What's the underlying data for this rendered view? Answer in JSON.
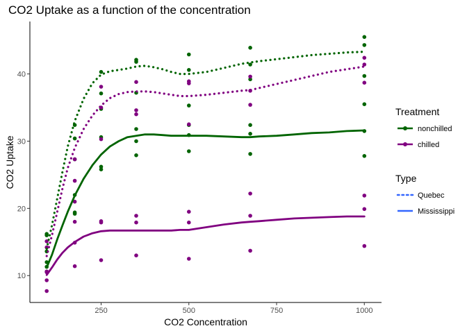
{
  "chart_data": {
    "type": "scatter",
    "title": "CO2 Uptake as a function of the concentration",
    "xlabel": "CO2 Concentration",
    "ylabel": "CO2 Uptake",
    "xlim": [
      47,
      1049
    ],
    "ylim": [
      6,
      47.8
    ],
    "x_ticks": [
      250,
      500,
      750,
      1000
    ],
    "x_tick_labels": [
      "250",
      "500",
      "750",
      "1000"
    ],
    "y_ticks": [
      10,
      20,
      30,
      40
    ],
    "y_tick_labels": [
      "10",
      "20",
      "30",
      "40"
    ],
    "grid": false,
    "legend_position": "right",
    "legends": [
      {
        "title": "Treatment",
        "entries": [
          {
            "label": "nonchilled",
            "color": "#006400"
          },
          {
            "label": "chilled",
            "color": "#800080"
          }
        ]
      },
      {
        "title": "Type",
        "entries": [
          {
            "label": "Quebec",
            "linetype": "dotted",
            "color": "#3366ff"
          },
          {
            "label": "Mississippi",
            "linetype": "solid",
            "color": "#3366ff"
          }
        ]
      }
    ],
    "points": [
      {
        "treatment": "nonchilled",
        "x": [
          95,
          95,
          95,
          95,
          95,
          95,
          175,
          175,
          175,
          175,
          175,
          175,
          250,
          250,
          250,
          250,
          250,
          250,
          350,
          350,
          350,
          350,
          350,
          350,
          500,
          500,
          500,
          500,
          500,
          500,
          675,
          675,
          675,
          675,
          675,
          675,
          1000,
          1000,
          1000,
          1000,
          1000,
          1000
        ],
        "y": [
          16.0,
          13.6,
          16.2,
          12.0,
          11.3,
          10.6,
          30.4,
          27.3,
          32.4,
          22.0,
          19.4,
          19.2,
          34.8,
          37.1,
          40.3,
          30.6,
          25.8,
          26.2,
          37.2,
          41.8,
          42.1,
          31.8,
          27.9,
          30.0,
          35.3,
          40.6,
          42.9,
          32.4,
          28.5,
          30.9,
          39.2,
          41.4,
          43.9,
          32.4,
          28.1,
          31.1,
          39.7,
          44.3,
          45.5,
          35.5,
          27.8,
          31.5
        ]
      },
      {
        "treatment": "chilled",
        "x": [
          95,
          95,
          95,
          95,
          95,
          95,
          175,
          175,
          175,
          175,
          175,
          175,
          250,
          250,
          250,
          250,
          250,
          250,
          350,
          350,
          350,
          350,
          350,
          350,
          500,
          500,
          500,
          500,
          500,
          500,
          675,
          675,
          675,
          675,
          675,
          675,
          1000,
          1000,
          1000,
          1000,
          1000,
          1000
        ],
        "y": [
          14.2,
          9.3,
          15.1,
          10.5,
          7.7,
          10.6,
          24.1,
          27.3,
          21.0,
          14.9,
          11.4,
          18.0,
          30.3,
          35.0,
          38.1,
          18.1,
          12.3,
          17.9,
          34.6,
          38.8,
          34.0,
          18.9,
          13.0,
          17.9,
          32.5,
          38.6,
          38.9,
          19.5,
          12.5,
          17.9,
          35.4,
          37.5,
          39.6,
          22.2,
          13.7,
          18.9,
          38.7,
          42.4,
          41.4,
          21.9,
          14.4,
          19.9
        ]
      }
    ],
    "series": [
      {
        "treatment": "nonchilled",
        "type": "Quebec",
        "linetype": "dotted",
        "x": [
          95,
          110,
          125,
          140,
          155,
          175,
          200,
          225,
          250,
          275,
          300,
          325,
          350,
          375,
          400,
          425,
          450,
          475,
          500,
          550,
          600,
          650,
          675,
          700,
          750,
          800,
          850,
          900,
          950,
          1000
        ],
        "y": [
          14.0,
          17.5,
          21.5,
          25.5,
          29.2,
          33.0,
          36.3,
          38.6,
          39.9,
          40.4,
          40.6,
          40.8,
          41.1,
          41.2,
          41.0,
          40.7,
          40.3,
          40.0,
          40.0,
          40.3,
          40.9,
          41.5,
          41.7,
          41.9,
          42.2,
          42.5,
          42.8,
          43.0,
          43.2,
          43.3
        ]
      },
      {
        "treatment": "chilled",
        "type": "Quebec",
        "linetype": "dotted",
        "x": [
          95,
          110,
          125,
          140,
          155,
          175,
          200,
          225,
          250,
          275,
          300,
          325,
          350,
          375,
          400,
          425,
          450,
          475,
          500,
          550,
          600,
          650,
          675,
          700,
          750,
          800,
          850,
          900,
          950,
          1000
        ],
        "y": [
          12.9,
          16.0,
          19.5,
          23.0,
          26.0,
          29.0,
          31.8,
          33.8,
          35.3,
          36.4,
          37.0,
          37.3,
          37.4,
          37.4,
          37.3,
          37.1,
          36.9,
          36.7,
          36.7,
          36.9,
          37.2,
          37.5,
          37.6,
          37.9,
          38.5,
          39.1,
          39.7,
          40.3,
          40.7,
          41.1
        ]
      },
      {
        "treatment": "nonchilled",
        "type": "Mississippi",
        "linetype": "solid",
        "x": [
          95,
          110,
          125,
          140,
          155,
          175,
          200,
          225,
          250,
          275,
          300,
          325,
          350,
          375,
          400,
          425,
          450,
          475,
          500,
          550,
          600,
          650,
          675,
          700,
          750,
          800,
          850,
          900,
          950,
          1000
        ],
        "y": [
          11.2,
          13.1,
          15.4,
          17.5,
          19.5,
          21.9,
          24.4,
          26.4,
          28.0,
          29.2,
          30.0,
          30.6,
          30.8,
          31.0,
          31.0,
          30.9,
          30.8,
          30.8,
          30.8,
          30.8,
          30.7,
          30.6,
          30.6,
          30.7,
          30.8,
          31.0,
          31.2,
          31.3,
          31.5,
          31.6
        ]
      },
      {
        "treatment": "chilled",
        "type": "Mississippi",
        "linetype": "solid",
        "x": [
          95,
          110,
          125,
          140,
          155,
          175,
          200,
          225,
          250,
          275,
          300,
          325,
          350,
          375,
          400,
          425,
          450,
          475,
          500,
          550,
          600,
          650,
          675,
          700,
          750,
          800,
          850,
          900,
          950,
          1000
        ],
        "y": [
          10.1,
          11.2,
          12.4,
          13.4,
          14.2,
          15.0,
          15.8,
          16.3,
          16.6,
          16.7,
          16.7,
          16.7,
          16.7,
          16.7,
          16.7,
          16.7,
          16.7,
          16.8,
          16.8,
          17.2,
          17.6,
          17.9,
          18.0,
          18.1,
          18.3,
          18.5,
          18.6,
          18.7,
          18.8,
          18.8
        ]
      }
    ]
  }
}
